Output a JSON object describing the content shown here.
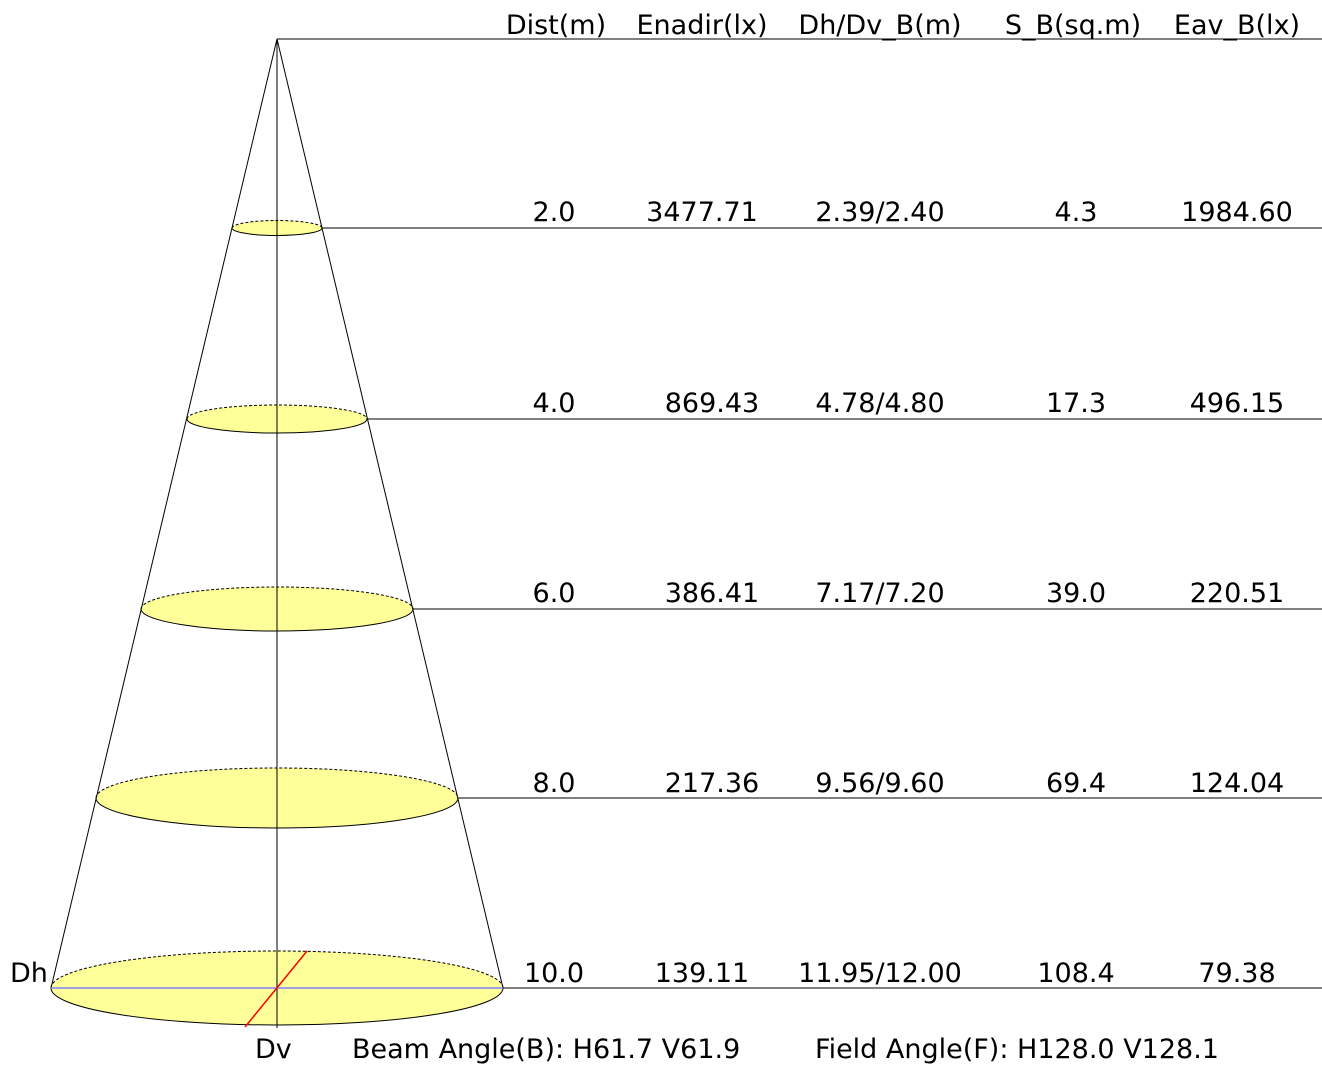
{
  "table": {
    "headers": [
      "Dist(m)",
      "Enadir(lx)",
      "Dh/Dv_B(m)",
      "S_B(sq.m)",
      "Eav_B(lx)"
    ],
    "rows": [
      {
        "dist": "2.0",
        "enadir": "3477.71",
        "dh_dv": "2.39/2.40",
        "area": "4.3",
        "eav": "1984.60"
      },
      {
        "dist": "4.0",
        "enadir": "869.43",
        "dh_dv": "4.78/4.80",
        "area": "17.3",
        "eav": "496.15"
      },
      {
        "dist": "6.0",
        "enadir": "386.41",
        "dh_dv": "7.17/7.20",
        "area": "39.0",
        "eav": "220.51"
      },
      {
        "dist": "8.0",
        "enadir": "217.36",
        "dh_dv": "9.56/9.60",
        "area": "69.4",
        "eav": "124.04"
      },
      {
        "dist": "10.0",
        "enadir": "139.11",
        "dh_dv": "11.95/12.00",
        "area": "108.4",
        "eav": "79.38"
      }
    ]
  },
  "labels": {
    "dh": "Dh",
    "dv": "Dv"
  },
  "footer": {
    "beam_angle": "Beam Angle(B): H61.7 V61.9",
    "field_angle": "Field Angle(F): H128.0 V128.1"
  },
  "colors": {
    "ellipse_fill": "#ffff99",
    "dv_line": "#ff0000",
    "dh_line": "#8080ff",
    "line": "#000000"
  }
}
